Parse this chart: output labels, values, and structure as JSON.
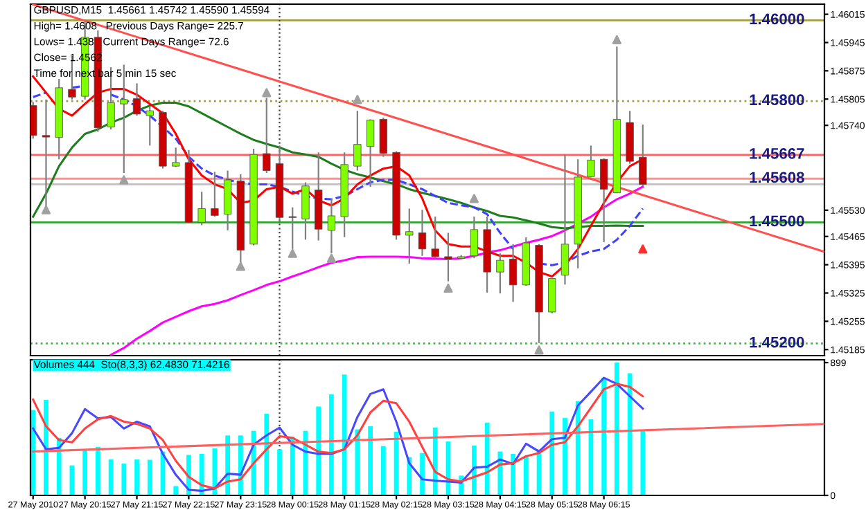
{
  "chart_data": [
    {
      "type": "candlestick",
      "title": "GBPUSD,M15  1.45661 1.45742 1.45590 1.45594",
      "annotations": [
        "High= 1.4608   Previous Days Range= 225.7",
        "Lows= 1.438   Current Days Range= 72.6",
        "Close= 1.4562",
        "Time for next bar 5 min 15 sec"
      ],
      "x": [
        "2010-05-27T19:15",
        "2010-05-27T19:30",
        "2010-05-27T19:45",
        "2010-05-27T20:00",
        "2010-05-27T20:15",
        "2010-05-27T20:30",
        "2010-05-27T20:45",
        "2010-05-27T21:00",
        "2010-05-27T21:15",
        "2010-05-27T21:30",
        "2010-05-27T21:45",
        "2010-05-27T22:00",
        "2010-05-27T22:15",
        "2010-05-27T22:30",
        "2010-05-27T22:45",
        "2010-05-27T23:00",
        "2010-05-27T23:15",
        "2010-05-27T23:30",
        "2010-05-27T23:45",
        "2010-05-28T00:00",
        "2010-05-28T00:15",
        "2010-05-28T00:30",
        "2010-05-28T00:45",
        "2010-05-28T01:00",
        "2010-05-28T01:15",
        "2010-05-28T01:30",
        "2010-05-28T01:45",
        "2010-05-28T02:00",
        "2010-05-28T02:15",
        "2010-05-28T02:30",
        "2010-05-28T02:45",
        "2010-05-28T03:00",
        "2010-05-28T03:15",
        "2010-05-28T03:30",
        "2010-05-28T03:45",
        "2010-05-28T04:00",
        "2010-05-28T04:15",
        "2010-05-28T04:30",
        "2010-05-28T04:45",
        "2010-05-28T05:00",
        "2010-05-28T05:15",
        "2010-05-28T05:30",
        "2010-05-28T05:45",
        "2010-05-28T06:00",
        "2010-05-28T06:15",
        "2010-05-28T06:30",
        "2010-05-28T06:45",
        "2010-05-28T07:00"
      ],
      "ohlc": [
        [
          1.45789,
          1.45798,
          1.45707,
          1.45715
        ],
        [
          1.45715,
          1.45804,
          1.45531,
          1.45711
        ],
        [
          1.4571,
          1.45855,
          1.45656,
          1.45833
        ],
        [
          1.45829,
          1.45912,
          1.45804,
          1.4581
        ],
        [
          1.45812,
          1.45998,
          1.45804,
          1.45958
        ],
        [
          1.45958,
          1.45975,
          1.45724,
          1.45734
        ],
        [
          1.45736,
          1.45884,
          1.4573,
          1.45796
        ],
        [
          1.45793,
          1.4589,
          1.45622,
          1.45804
        ],
        [
          1.45806,
          1.45844,
          1.45764,
          1.45768
        ],
        [
          1.45764,
          1.45787,
          1.4569,
          1.45776
        ],
        [
          1.45772,
          1.45776,
          1.45633,
          1.45639
        ],
        [
          1.45639,
          1.45685,
          1.45637,
          1.45648
        ],
        [
          1.45648,
          1.45679,
          1.45497,
          1.455
        ],
        [
          1.455,
          1.45576,
          1.45493,
          1.45534
        ],
        [
          1.45534,
          1.45625,
          1.45514,
          1.45517
        ],
        [
          1.4552,
          1.45628,
          1.4548,
          1.45605
        ],
        [
          1.45602,
          1.45619,
          1.454,
          1.45431
        ],
        [
          1.45446,
          1.45682,
          1.45443,
          1.45668
        ],
        [
          1.4567,
          1.45808,
          1.45622,
          1.45628
        ],
        [
          1.45645,
          1.4569,
          1.45502,
          1.45512
        ],
        [
          1.45514,
          1.45537,
          1.45434,
          1.45512
        ],
        [
          1.45508,
          1.45599,
          1.45457,
          1.4559
        ],
        [
          1.4558,
          1.45673,
          1.45455,
          1.45483
        ],
        [
          1.4548,
          1.45559,
          1.45423,
          1.45516
        ],
        [
          1.45514,
          1.45673,
          1.45463,
          1.45643
        ],
        [
          1.45639,
          1.45776,
          1.45628,
          1.45693
        ],
        [
          1.45688,
          1.45755,
          1.45588,
          1.45753
        ],
        [
          1.45755,
          1.45759,
          1.45662,
          1.45671
        ],
        [
          1.45673,
          1.45676,
          1.45457,
          1.45468
        ],
        [
          1.45468,
          1.45534,
          1.45398,
          1.45477
        ],
        [
          1.45474,
          1.45531,
          1.45417,
          1.45434
        ],
        [
          1.45434,
          1.45514,
          1.45411,
          1.45415
        ],
        [
          1.45415,
          1.45474,
          1.45354,
          1.45409
        ],
        [
          1.45411,
          1.45419,
          1.45409,
          1.45415
        ],
        [
          1.45417,
          1.45514,
          1.45411,
          1.45482
        ],
        [
          1.45482,
          1.45514,
          1.45326,
          1.45377
        ],
        [
          1.45377,
          1.45423,
          1.45324,
          1.45406
        ],
        [
          1.45409,
          1.45446,
          1.45303,
          1.45345
        ],
        [
          1.45345,
          1.45463,
          1.45343,
          1.45449
        ],
        [
          1.45443,
          1.45446,
          1.45201,
          1.45278
        ],
        [
          1.45278,
          1.45361,
          1.45275,
          1.45361
        ],
        [
          1.45369,
          1.45668,
          1.45346,
          1.45446
        ],
        [
          1.45446,
          1.45656,
          1.45386,
          1.45612
        ],
        [
          1.45613,
          1.4569,
          1.45611,
          1.45654
        ],
        [
          1.45656,
          1.45658,
          1.45451,
          1.45582
        ],
        [
          1.45573,
          1.45935,
          1.45573,
          1.45755
        ],
        [
          1.45747,
          1.45776,
          1.45645,
          1.45651
        ],
        [
          1.45661,
          1.45742,
          1.4559,
          1.45594
        ]
      ],
      "colors": [
        "#cc0000",
        "#cc0000",
        "#80ff00",
        "#cc0000",
        "#80ff00",
        "#cc0000",
        "#80ff00",
        "#80ff00",
        "#cc0000",
        "#80ff00",
        "#cc0000",
        "#80ff00",
        "#cc0000",
        "#80ff00",
        "#cc0000",
        "#80ff00",
        "#cc0000",
        "#80ff00",
        "#cc0000",
        "#cc0000",
        "#cc0000",
        "#80ff00",
        "#cc0000",
        "#80ff00",
        "#80ff00",
        "#80ff00",
        "#80ff00",
        "#cc0000",
        "#cc0000",
        "#80ff00",
        "#cc0000",
        "#cc0000",
        "#cc0000",
        "#80ff00",
        "#80ff00",
        "#cc0000",
        "#80ff00",
        "#cc0000",
        "#80ff00",
        "#cc0000",
        "#80ff00",
        "#80ff00",
        "#80ff00",
        "#80ff00",
        "#cc0000",
        "#80ff00",
        "#cc0000",
        "#cc0000"
      ],
      "series": [
        {
          "type": "line",
          "color": "#ff00ff",
          "values": [
            null,
            null,
            null,
            null,
            null,
            null,
            1.45172,
            1.45189,
            1.45212,
            1.45231,
            1.45252,
            1.45266,
            1.4528,
            1.45292,
            1.45298,
            1.45307,
            1.4532,
            1.45332,
            1.45345,
            1.45354,
            1.45366,
            1.45377,
            1.45389,
            1.454,
            1.45406,
            1.45414,
            1.45415,
            1.45415,
            1.45415,
            1.45414,
            1.45411,
            1.4541,
            1.45409,
            1.45411,
            1.45417,
            1.45425,
            1.45431,
            1.4544,
            1.45449,
            1.45457,
            1.45466,
            1.4548,
            1.45497,
            1.45514,
            1.45537,
            1.45557,
            1.45571,
            1.45588
          ]
        },
        {
          "type": "line",
          "color": "#1e7d1e",
          "values": [
            1.45514,
            1.45571,
            1.45639,
            1.45685,
            1.45719,
            1.4573,
            1.45747,
            1.45759,
            1.45776,
            1.45789,
            1.45796,
            1.45796,
            1.45787,
            1.4577,
            1.45753,
            1.45736,
            1.45719,
            1.45704,
            1.45694,
            1.45685,
            1.45673,
            1.45668,
            1.45662,
            1.45645,
            1.4563,
            1.45619,
            1.45611,
            1.45602,
            1.45594,
            1.45582,
            1.45573,
            1.45565,
            1.45557,
            1.45548,
            1.45537,
            1.45528,
            1.45516,
            1.45512,
            1.45505,
            1.45497,
            1.45488,
            1.45485,
            1.45488,
            1.45491,
            1.45491,
            1.45492,
            1.45491,
            1.45491
          ]
        },
        {
          "type": "line",
          "color": "#4040ff",
          "line_style": "dashed",
          "values": [
            1.4581,
            1.45821,
            null,
            1.45833,
            1.45838,
            null,
            1.45816,
            1.45804,
            1.45787,
            1.45764,
            1.45736,
            1.45707,
            1.45662,
            1.45633,
            1.45616,
            1.45605,
            1.45599,
            1.45594,
            1.45594,
            1.45588,
            1.45576,
            1.45565,
            1.45559,
            1.45557,
            1.45565,
            1.45582,
            1.45599,
            1.45605,
            1.45605,
            1.45594,
            1.45582,
            1.45565,
            1.45548,
            1.45542,
            1.45537,
            1.4552,
            1.45474,
            1.45434,
            null,
            1.45398,
            1.45394,
            1.454,
            1.45417,
            1.45428,
            1.45434,
            1.45457,
            1.45491,
            1.45534
          ]
        },
        {
          "type": "line",
          "color": "#ff0000",
          "values": [
            1.45861,
            1.45821,
            1.45781,
            1.45764,
            1.45793,
            1.45821,
            1.4583,
            1.4583,
            1.45816,
            1.45793,
            1.4577,
            1.45719,
            1.45656,
            1.45616,
            1.45594,
            1.45582,
            1.45548,
            1.45554,
            1.45582,
            1.45588,
            1.45571,
            1.45582,
            1.45554,
            1.45542,
            1.45559,
            1.45594,
            1.45616,
            1.45633,
            1.45639,
            1.45616,
            1.45559,
            1.4548,
            1.45446,
            1.4544,
            1.4544,
            1.45428,
            1.45417,
            1.45417,
            1.454,
            1.45377,
            1.45366,
            1.45394,
            1.45434,
            1.45491,
            1.45548,
            1.45599,
            1.45639,
            1.45656
          ]
        },
        {
          "type": "line",
          "color": "#ff5050",
          "x": [
            "2010-05-27T19:15",
            "2010-05-28T10:30"
          ],
          "values": [
            1.46039,
            1.45427
          ]
        },
        {
          "type": "scatter",
          "color": "#a0a0a0",
          "marker": "triangle",
          "x": [
            "2010-05-27T23:45",
            "2010-05-28T01:30",
            "2010-05-28T03:45",
            "2010-05-28T06:30"
          ],
          "values": [
            1.45821,
            1.45804,
            1.45559,
            1.45952
          ]
        },
        {
          "type": "scatter",
          "color": "#a0a0a0",
          "marker": "triangle",
          "x": [
            "2010-05-27T19:30",
            "2010-05-27T21:00",
            "2010-05-27T23:15",
            "2010-05-28T00:15",
            "2010-05-28T01:00",
            "2010-05-28T03:15",
            "2010-05-28T05:00"
          ],
          "values": [
            1.45531,
            1.45605,
            1.45391,
            1.45423,
            1.45411,
            1.45337,
            1.45184
          ]
        },
        {
          "type": "scatter",
          "color": "#ff3030",
          "marker": "triangle",
          "x": [
            "2010-05-28T07:00"
          ],
          "values": [
            1.45434
          ]
        }
      ],
      "ref_lines": [
        {
          "axis": "y",
          "value": 1.46,
          "label": "1.46000",
          "color": "#a0a040"
        },
        {
          "axis": "y",
          "value": 1.458,
          "label": "1.45800",
          "color": "#a0a040",
          "line_style": "dotted"
        },
        {
          "axis": "y",
          "value": 1.45667,
          "label": "1.45667",
          "color": "#ff6060"
        },
        {
          "axis": "y",
          "value": 1.45608,
          "label": "1.45608",
          "color": "#ff9090"
        },
        {
          "axis": "y",
          "value": 1.45594,
          "color": "#c0c0c0"
        },
        {
          "axis": "y",
          "value": 1.455,
          "label": "1.45500",
          "color": "#30a030"
        },
        {
          "axis": "y",
          "value": 1.452,
          "label": "1.45200",
          "color": "#30c030",
          "line_style": "dotted"
        },
        {
          "axis": "x",
          "value": "2010-05-28T00:00",
          "color": "#404040",
          "line_style": "dotted"
        }
      ],
      "xlim": [
        "2010-05-27T19:12",
        "2010-05-28T10:30"
      ],
      "ylim": [
        1.4517,
        1.4604
      ],
      "yticks": [
        1.46015,
        1.45945,
        1.45875,
        1.45805,
        {
          "value": 1.4574,
          "label": "1.45740"
        },
        {
          "value": 1.4553,
          "label": "1.45530"
        },
        1.45465,
        1.45395,
        1.45325,
        1.45255,
        1.45185
      ],
      "tick_labels": "y"
    },
    {
      "type": "bar",
      "title": "Volumes 444  Sto(8,3,3) 62.4830 71.4216",
      "x": [
        "2010-05-27T19:15",
        "2010-05-27T19:30",
        "2010-05-27T19:45",
        "2010-05-27T20:00",
        "2010-05-27T20:15",
        "2010-05-27T20:30",
        "2010-05-27T20:45",
        "2010-05-27T21:00",
        "2010-05-27T21:15",
        "2010-05-27T21:30",
        "2010-05-27T21:45",
        "2010-05-27T22:00",
        "2010-05-27T22:15",
        "2010-05-27T22:30",
        "2010-05-27T22:45",
        "2010-05-27T23:00",
        "2010-05-27T23:15",
        "2010-05-27T23:30",
        "2010-05-27T23:45",
        "2010-05-28T00:00",
        "2010-05-28T00:15",
        "2010-05-28T00:30",
        "2010-05-28T00:45",
        "2010-05-28T01:00",
        "2010-05-28T01:15",
        "2010-05-28T01:30",
        "2010-05-28T01:45",
        "2010-05-28T02:00",
        "2010-05-28T02:15",
        "2010-05-28T02:30",
        "2010-05-28T02:45",
        "2010-05-28T03:00",
        "2010-05-28T03:15",
        "2010-05-28T03:30",
        "2010-05-28T03:45",
        "2010-05-28T04:00",
        "2010-05-28T04:15",
        "2010-05-28T04:30",
        "2010-05-28T04:45",
        "2010-05-28T05:00",
        "2010-05-28T05:15",
        "2010-05-28T05:30",
        "2010-05-28T05:45",
        "2010-05-28T06:00",
        "2010-05-28T06:15",
        "2010-05-28T06:30",
        "2010-05-28T06:45",
        "2010-05-28T07:00"
      ],
      "series": [
        {
          "type": "bar",
          "color": "#00ffff",
          "values": [
            578,
            646,
            390,
            203,
            306,
            328,
            243,
            215,
            243,
            241,
            297,
            63,
            274,
            281,
            318,
            406,
            406,
            437,
            553,
            312,
            396,
            437,
            602,
            684,
            818,
            447,
            468,
            334,
            431,
            259,
            287,
            459,
            365,
            134,
            337,
            493,
            297,
            281,
            265,
            312,
            568,
            524,
            637,
            515,
            796,
            899,
            827,
            444
          ]
        },
        {
          "type": "line",
          "color": "#4848ff",
          "values": [
            453,
            312,
            322,
            421,
            584,
            521,
            531,
            453,
            499,
            468,
            281,
            140,
            37,
            31,
            47,
            147,
            140,
            343,
            406,
            459,
            343,
            296,
            281,
            281,
            312,
            531,
            687,
            718,
            499,
            218,
            109,
            100,
            94,
            87,
            187,
            194,
            243,
            212,
            350,
            297,
            381,
            390,
            609,
            702,
            796,
            755,
            671,
            587
          ]
        },
        {
          "type": "line",
          "color": "#ff4040",
          "values": [
            649,
            468,
            375,
            359,
            453,
            515,
            537,
            499,
            484,
            453,
            375,
            234,
            125,
            69,
            47,
            94,
            109,
            218,
            312,
            400,
            390,
            343,
            296,
            287,
            312,
            406,
            562,
            640,
            624,
            499,
            328,
            159,
            109,
            94,
            125,
            156,
            209,
            218,
            265,
            287,
            343,
            359,
            468,
            593,
            718,
            755,
            734,
            671
          ]
        },
        {
          "type": "line",
          "color": "#ff6060",
          "x": [
            "2010-05-27T19:15",
            "2010-05-28T10:30"
          ],
          "values": [
            297,
            484
          ]
        }
      ],
      "ref_lines": [
        {
          "axis": "x",
          "value": "2010-05-28T00:00",
          "color": "#404040",
          "line_style": "dotted"
        }
      ],
      "xlim": [
        "2010-05-27T19:12",
        "2010-05-28T10:30"
      ],
      "xticks": [
        {
          "value": "2010-05-27T19:15",
          "label": "27 May 2010"
        },
        {
          "value": "2010-05-27T20:15",
          "label": "27 May 20:15"
        },
        {
          "value": "2010-05-27T21:15",
          "label": "27 May 21:15"
        },
        {
          "value": "2010-05-27T22:15",
          "label": "27 May 22:15"
        },
        {
          "value": "2010-05-27T23:15",
          "label": "27 May 23:15"
        },
        {
          "value": "2010-05-28T00:15",
          "label": "28 May 00:15"
        },
        {
          "value": "2010-05-28T01:15",
          "label": "28 May 01:15"
        },
        {
          "value": "2010-05-28T02:15",
          "label": "28 May 02:15"
        },
        {
          "value": "2010-05-28T03:15",
          "label": "28 May 03:15"
        },
        {
          "value": "2010-05-28T04:15",
          "label": "28 May 04:15"
        },
        {
          "value": "2010-05-28T05:15",
          "label": "28 May 05:15"
        },
        {
          "value": "2010-05-28T06:15",
          "label": "28 May 06:15"
        }
      ],
      "ylim": [
        0,
        918
      ],
      "yticks": [
        0,
        899
      ]
    }
  ]
}
